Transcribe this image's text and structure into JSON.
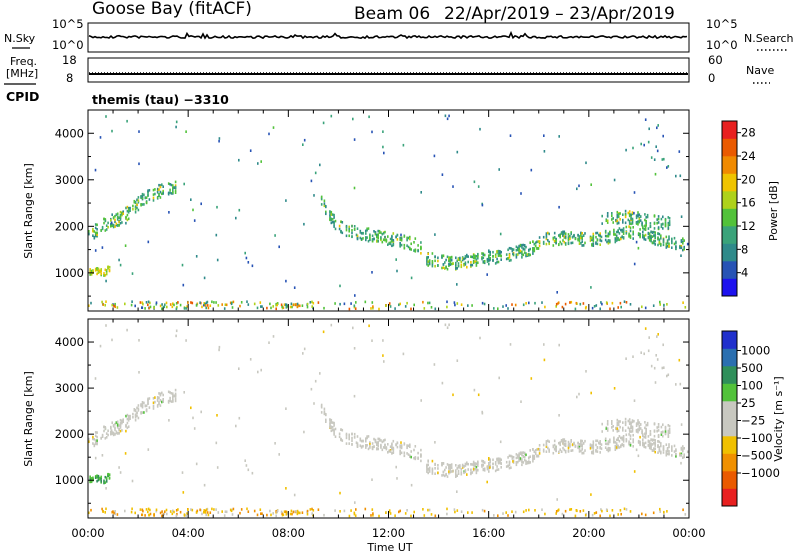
{
  "header": {
    "station": "Goose Bay (fitACF)",
    "beam": "Beam 06",
    "date_range": "22/Apr/2019 – 23/Apr/2019"
  },
  "top_panels": {
    "nsky_label": "N.Sky",
    "nsky_ticks": [
      "10^5",
      "10^0"
    ],
    "nsearch_label": "N.Search",
    "nsearch_ticks": [
      "10^5",
      "10^0"
    ],
    "freq_label": "Freq.",
    "freq_unit": "[MHz]",
    "freq_ticks": [
      "18",
      "8"
    ],
    "nave_label": "Nave",
    "nave_ticks": [
      "60",
      "0"
    ],
    "cpid_label": "CPID",
    "cpid_text": "themis (tau) −3310"
  },
  "chart_data": [
    {
      "type": "heatmap",
      "title": "",
      "xlabel": "Time UT",
      "ylabel": "Slant Range [km]",
      "x_ticks": [
        "00:00",
        "04:00",
        "08:00",
        "12:00",
        "16:00",
        "20:00",
        "00:00"
      ],
      "xlim_hours": [
        0,
        24
      ],
      "y_ticks": [
        1000,
        2000,
        3000,
        4000
      ],
      "ylim": [
        180,
        4500
      ],
      "colorbar": {
        "label": "Power [dB]",
        "ticks": [
          "4",
          "8",
          "12",
          "16",
          "20",
          "24",
          "28"
        ],
        "range": [
          0,
          30
        ],
        "colors": [
          "#1d12ee",
          "#2753b5",
          "#2f8a8a",
          "#3aa37a",
          "#52c23a",
          "#aed21b",
          "#efc400",
          "#f08a00",
          "#ea5a00",
          "#e82020"
        ]
      },
      "series": [
        {
          "name": "",
          "x": [
            0.0,
            0.4,
            0.8,
            1.2,
            1.6,
            2.0,
            2.4,
            2.8,
            3.2,
            3.5
          ],
          "y": [
            1800,
            1950,
            2100,
            2150,
            2300,
            2500,
            2650,
            2750,
            2800,
            2850
          ]
        },
        {
          "name": "",
          "x": [
            0.0,
            0.3,
            0.6,
            0.9
          ],
          "y": [
            1000,
            1050,
            1000,
            1100
          ]
        },
        {
          "name": "",
          "x": [
            9.3,
            9.8,
            10.3,
            10.8,
            11.3,
            11.8,
            12.3,
            12.8,
            13.3
          ],
          "y": [
            2500,
            2100,
            1900,
            1850,
            1800,
            1750,
            1700,
            1650,
            1550
          ]
        },
        {
          "name": "",
          "x": [
            13.5,
            14.5,
            15.5,
            16.5,
            17.5,
            18.0
          ],
          "y": [
            1300,
            1200,
            1300,
            1350,
            1500,
            1600
          ]
        },
        {
          "name": "",
          "x": [
            18.0,
            19.0,
            20.0,
            21.0,
            22.0,
            23.0,
            23.8
          ],
          "y": [
            1700,
            1750,
            1700,
            1800,
            1900,
            1650,
            1600
          ]
        },
        {
          "name": "",
          "x": [
            20.5,
            21.5,
            22.5,
            23.3
          ],
          "y": [
            2150,
            2200,
            2100,
            2050
          ]
        }
      ]
    },
    {
      "type": "heatmap",
      "title": "",
      "xlabel": "Time UT",
      "ylabel": "Slant Range [km]",
      "x_ticks": [
        "00:00",
        "04:00",
        "08:00",
        "12:00",
        "16:00",
        "20:00",
        "00:00"
      ],
      "xlim_hours": [
        0,
        24
      ],
      "y_ticks": [
        1000,
        2000,
        3000,
        4000
      ],
      "ylim": [
        180,
        4500
      ],
      "colorbar": {
        "label": "Velocity [m s⁻¹]",
        "ticks": [
          "1000",
          "500",
          "100",
          "25",
          "−25",
          "−100",
          "−500",
          "−1000"
        ],
        "colors": [
          "#2030cc",
          "#2a6fb0",
          "#2f8f5a",
          "#52c23a",
          "#c8c8c0",
          "#c8c8c0",
          "#f0c000",
          "#f09000",
          "#ea5a00",
          "#e82020"
        ]
      }
    }
  ]
}
